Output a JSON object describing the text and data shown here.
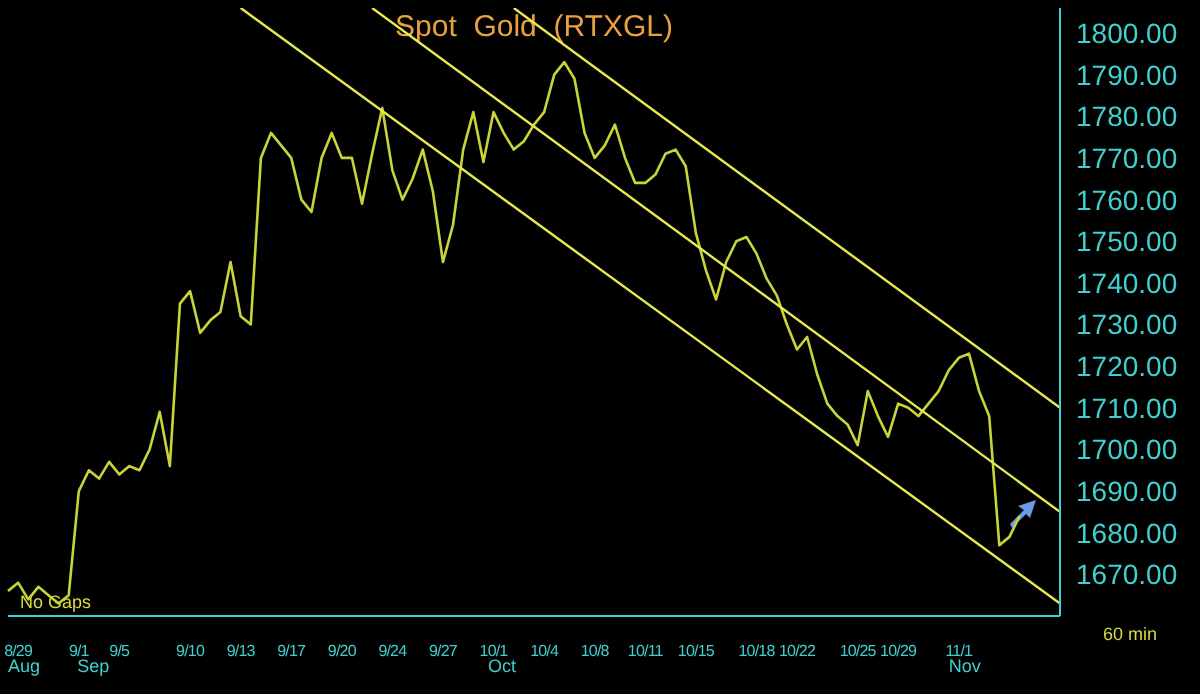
{
  "chart_data": {
    "type": "line",
    "title": "Spot  Gold  (RTXGL)",
    "categories": [
      null,
      "8/29",
      null,
      null,
      null,
      null,
      null,
      "9/1",
      null,
      null,
      null,
      "9/5",
      null,
      null,
      null,
      null,
      null,
      null,
      "9/10",
      null,
      null,
      null,
      null,
      "9/13",
      null,
      null,
      null,
      null,
      "9/17",
      null,
      null,
      null,
      null,
      "9/20",
      null,
      null,
      null,
      null,
      "9/24",
      null,
      null,
      null,
      null,
      "9/27",
      null,
      null,
      null,
      null,
      "10/1",
      null,
      null,
      null,
      null,
      "10/4",
      null,
      null,
      null,
      null,
      "10/8",
      null,
      null,
      null,
      null,
      "10/11",
      null,
      null,
      null,
      null,
      "10/15",
      null,
      null,
      null,
      null,
      null,
      "10/18",
      null,
      null,
      null,
      "10/22",
      null,
      null,
      null,
      null,
      null,
      "10/25",
      null,
      null,
      null,
      "10/29",
      null,
      null,
      null,
      null,
      null,
      "11/1",
      null,
      null,
      null,
      null,
      null,
      null,
      null,
      null,
      null,
      null
    ],
    "series": [
      {
        "type": "line",
        "color": "#c8d43a",
        "values": [
          1666,
          1668,
          1664,
          1667,
          1665,
          1663,
          1665,
          1690,
          1695,
          1693,
          1697,
          1694,
          1696,
          1695,
          1700,
          1709,
          1696,
          1735,
          1738,
          1728,
          1731,
          1733,
          1745,
          1732,
          1730,
          1770,
          1776,
          1773,
          1770,
          1760,
          1757,
          1770,
          1776,
          1770,
          1770,
          1759,
          1771,
          1782,
          1767,
          1760,
          1765,
          1772,
          1762,
          1745,
          1754,
          1772,
          1781,
          1769,
          1781,
          1776,
          1772,
          1774,
          1778,
          1781,
          1790,
          1793,
          1789,
          1776,
          1770,
          1773,
          1778,
          1770,
          1764,
          1764,
          1766,
          1771,
          1772,
          1768,
          1752,
          1743,
          1736,
          1745,
          1750,
          1751,
          1747,
          1741,
          1737,
          1730,
          1724,
          1727,
          1718,
          1711,
          1708,
          1706,
          1701,
          1714,
          1708,
          1703,
          1711,
          1710,
          1708,
          1711,
          1714,
          1719,
          1722,
          1723,
          1714,
          1708,
          1677,
          1679,
          1684,
          null,
          null,
          null,
          null
        ]
      },
      {
        "type": "line",
        "color": "#e8e850",
        "values": [
          null,
          null,
          null,
          null,
          null,
          null,
          null,
          null,
          null,
          null,
          null,
          null,
          null,
          null,
          null,
          null,
          null,
          null,
          null,
          null,
          null,
          null,
          null,
          null,
          null,
          null,
          null,
          null,
          null,
          null,
          null,
          null,
          null,
          null,
          null,
          null,
          null,
          null,
          null,
          null,
          null,
          null,
          null,
          null,
          null,
          null,
          null,
          null,
          null,
          null,
          1806,
          null,
          null,
          null,
          null,
          null,
          null,
          null,
          null,
          null,
          null,
          null,
          null,
          null,
          null,
          null,
          null,
          null,
          null,
          null,
          null,
          null,
          null,
          null,
          null,
          null,
          null,
          null,
          null,
          null,
          null,
          null,
          null,
          null,
          null,
          null,
          null,
          null,
          null,
          null,
          null,
          null,
          null,
          null,
          null,
          null,
          null,
          null,
          null,
          null,
          null,
          null,
          null,
          null,
          1710
        ]
      },
      {
        "type": "line",
        "color": "#e8e850",
        "values": [
          null,
          null,
          null,
          null,
          null,
          null,
          null,
          null,
          null,
          null,
          null,
          null,
          null,
          null,
          null,
          null,
          null,
          null,
          null,
          null,
          null,
          null,
          null,
          null,
          null,
          null,
          null,
          null,
          null,
          null,
          null,
          null,
          null,
          null,
          null,
          null,
          1806,
          null,
          null,
          null,
          null,
          null,
          null,
          null,
          null,
          null,
          null,
          null,
          null,
          null,
          null,
          null,
          null,
          null,
          null,
          null,
          null,
          null,
          null,
          null,
          null,
          null,
          null,
          null,
          null,
          null,
          null,
          null,
          null,
          null,
          null,
          null,
          null,
          null,
          null,
          null,
          null,
          null,
          null,
          null,
          null,
          null,
          null,
          null,
          null,
          null,
          null,
          null,
          null,
          null,
          null,
          null,
          null,
          null,
          null,
          null,
          null,
          null,
          null,
          null,
          null,
          null,
          null,
          null,
          1685
        ]
      },
      {
        "type": "line",
        "color": "#e8e850",
        "values": [
          null,
          null,
          null,
          null,
          null,
          null,
          null,
          null,
          null,
          null,
          null,
          null,
          null,
          null,
          null,
          null,
          null,
          null,
          null,
          null,
          null,
          null,
          null,
          1806,
          null,
          null,
          null,
          null,
          null,
          null,
          null,
          null,
          null,
          null,
          null,
          null,
          null,
          null,
          null,
          null,
          null,
          null,
          null,
          null,
          null,
          null,
          null,
          null,
          null,
          null,
          null,
          null,
          null,
          null,
          null,
          null,
          null,
          null,
          null,
          null,
          null,
          null,
          null,
          null,
          null,
          null,
          null,
          null,
          null,
          null,
          null,
          null,
          null,
          null,
          null,
          null,
          null,
          null,
          null,
          null,
          null,
          null,
          null,
          null,
          null,
          null,
          null,
          null,
          null,
          null,
          null,
          null,
          null,
          null,
          null,
          null,
          null,
          null,
          null,
          null,
          null,
          null,
          null,
          null,
          1663
        ]
      }
    ],
    "ylim": [
      1660,
      1806
    ],
    "yticks": [
      {
        "value": 1670,
        "label": "1670.00"
      },
      {
        "value": 1680,
        "label": "1680.00"
      },
      {
        "value": 1690,
        "label": "1690.00"
      },
      {
        "value": 1700,
        "label": "1700.00"
      },
      {
        "value": 1710,
        "label": "1710.00"
      },
      {
        "value": 1720,
        "label": "1720.00"
      },
      {
        "value": 1730,
        "label": "1730.00"
      },
      {
        "value": 1740,
        "label": "1740.00"
      },
      {
        "value": 1750,
        "label": "1750.00"
      },
      {
        "value": 1760,
        "label": "1760.00"
      },
      {
        "value": 1770,
        "label": "1770.00"
      },
      {
        "value": 1780,
        "label": "1780.00"
      },
      {
        "value": 1790,
        "label": "1790.00"
      },
      {
        "value": 1800,
        "label": "1800.00"
      }
    ],
    "annotations": [
      "No Gaps",
      "60 min",
      "Aug",
      "Sep",
      "Oct",
      "Nov"
    ],
    "grid": false,
    "legend": false,
    "marker": "none",
    "line_style": "solid"
  }
}
